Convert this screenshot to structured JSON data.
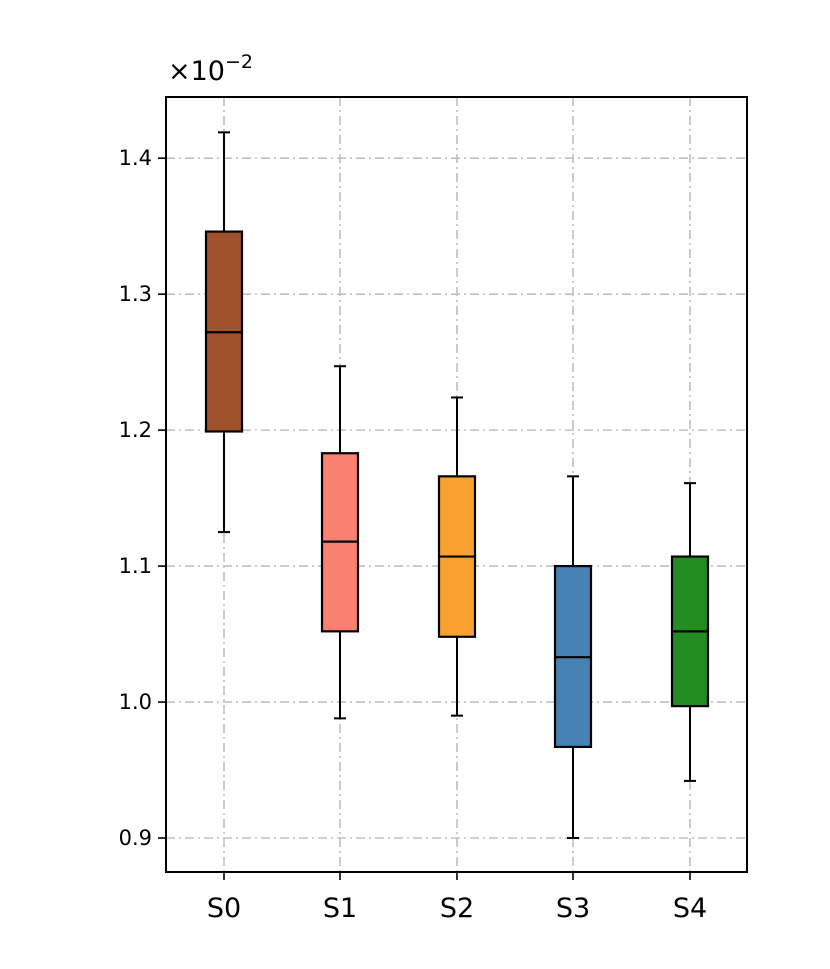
{
  "chart_data": {
    "type": "box",
    "title": "",
    "xlabel": "",
    "ylabel": "",
    "offset_label": "×10",
    "offset_exponent": "−2",
    "categories": [
      "S0",
      "S1",
      "S2",
      "S3",
      "S4"
    ],
    "colors": [
      "#a0522d",
      "#fa8072",
      "#f9a12e",
      "#4682b4",
      "#228b22"
    ],
    "boxes": [
      {
        "name": "S0",
        "whisker_low": 1.125,
        "q1": 1.199,
        "median": 1.272,
        "q3": 1.346,
        "whisker_high": 1.419
      },
      {
        "name": "S1",
        "whisker_low": 0.988,
        "q1": 1.052,
        "median": 1.118,
        "q3": 1.183,
        "whisker_high": 1.247
      },
      {
        "name": "S2",
        "whisker_low": 0.99,
        "q1": 1.048,
        "median": 1.107,
        "q3": 1.166,
        "whisker_high": 1.224
      },
      {
        "name": "S3",
        "whisker_low": 0.9,
        "q1": 0.967,
        "median": 1.033,
        "q3": 1.1,
        "whisker_high": 1.166
      },
      {
        "name": "S4",
        "whisker_low": 0.942,
        "q1": 0.997,
        "median": 1.052,
        "q3": 1.107,
        "whisker_high": 1.161
      }
    ],
    "ylim": [
      0.875,
      1.445
    ],
    "yticks": [
      0.9,
      1.0,
      1.1,
      1.2,
      1.3,
      1.4
    ],
    "ytick_labels": [
      "0.9",
      "1.0",
      "1.1",
      "1.2",
      "1.3",
      "1.4"
    ],
    "grid": true,
    "legend": "none"
  }
}
